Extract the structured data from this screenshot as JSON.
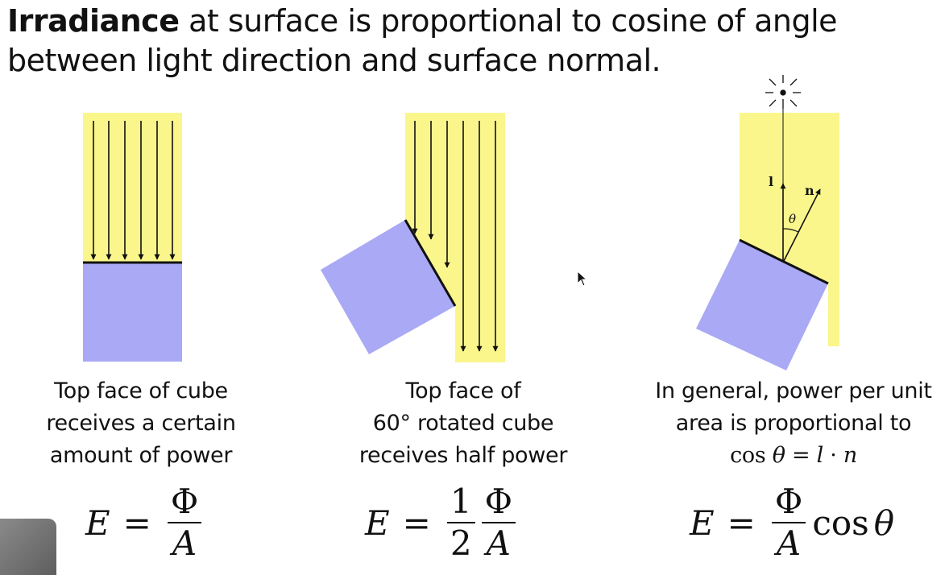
{
  "title": {
    "bold": "Irradiance",
    "rest": " at surface is proportional to cosine of angle between light direction and surface normal."
  },
  "panels": [
    {
      "caption": [
        "Top face of cube",
        "receives a certain",
        "amount of power"
      ],
      "formula": {
        "lhs": "E",
        "eq": "=",
        "frac_num": "Φ",
        "frac_den": "A"
      }
    },
    {
      "caption": [
        "Top face of",
        "60° rotated cube",
        "receives half power"
      ],
      "formula": {
        "lhs": "E",
        "eq": "=",
        "coef_num": "1",
        "coef_den": "2",
        "frac_num": "Φ",
        "frac_den": "A"
      }
    },
    {
      "caption": [
        "In general, power per unit",
        "area is proportional to"
      ],
      "caption_math": {
        "cos": "cos",
        "theta": "θ",
        "eq": "=",
        "l": "l",
        "dot": "·",
        "n": "n"
      },
      "formula": {
        "lhs": "E",
        "eq": "=",
        "frac_num": "Φ",
        "frac_den": "A",
        "cos": "cos",
        "theta": "θ"
      },
      "labels": {
        "light": "l",
        "normal": "n",
        "angle": "θ"
      }
    }
  ],
  "colors": {
    "light": "#faf68c",
    "cube": "#a9a9f5",
    "line": "#111111"
  }
}
